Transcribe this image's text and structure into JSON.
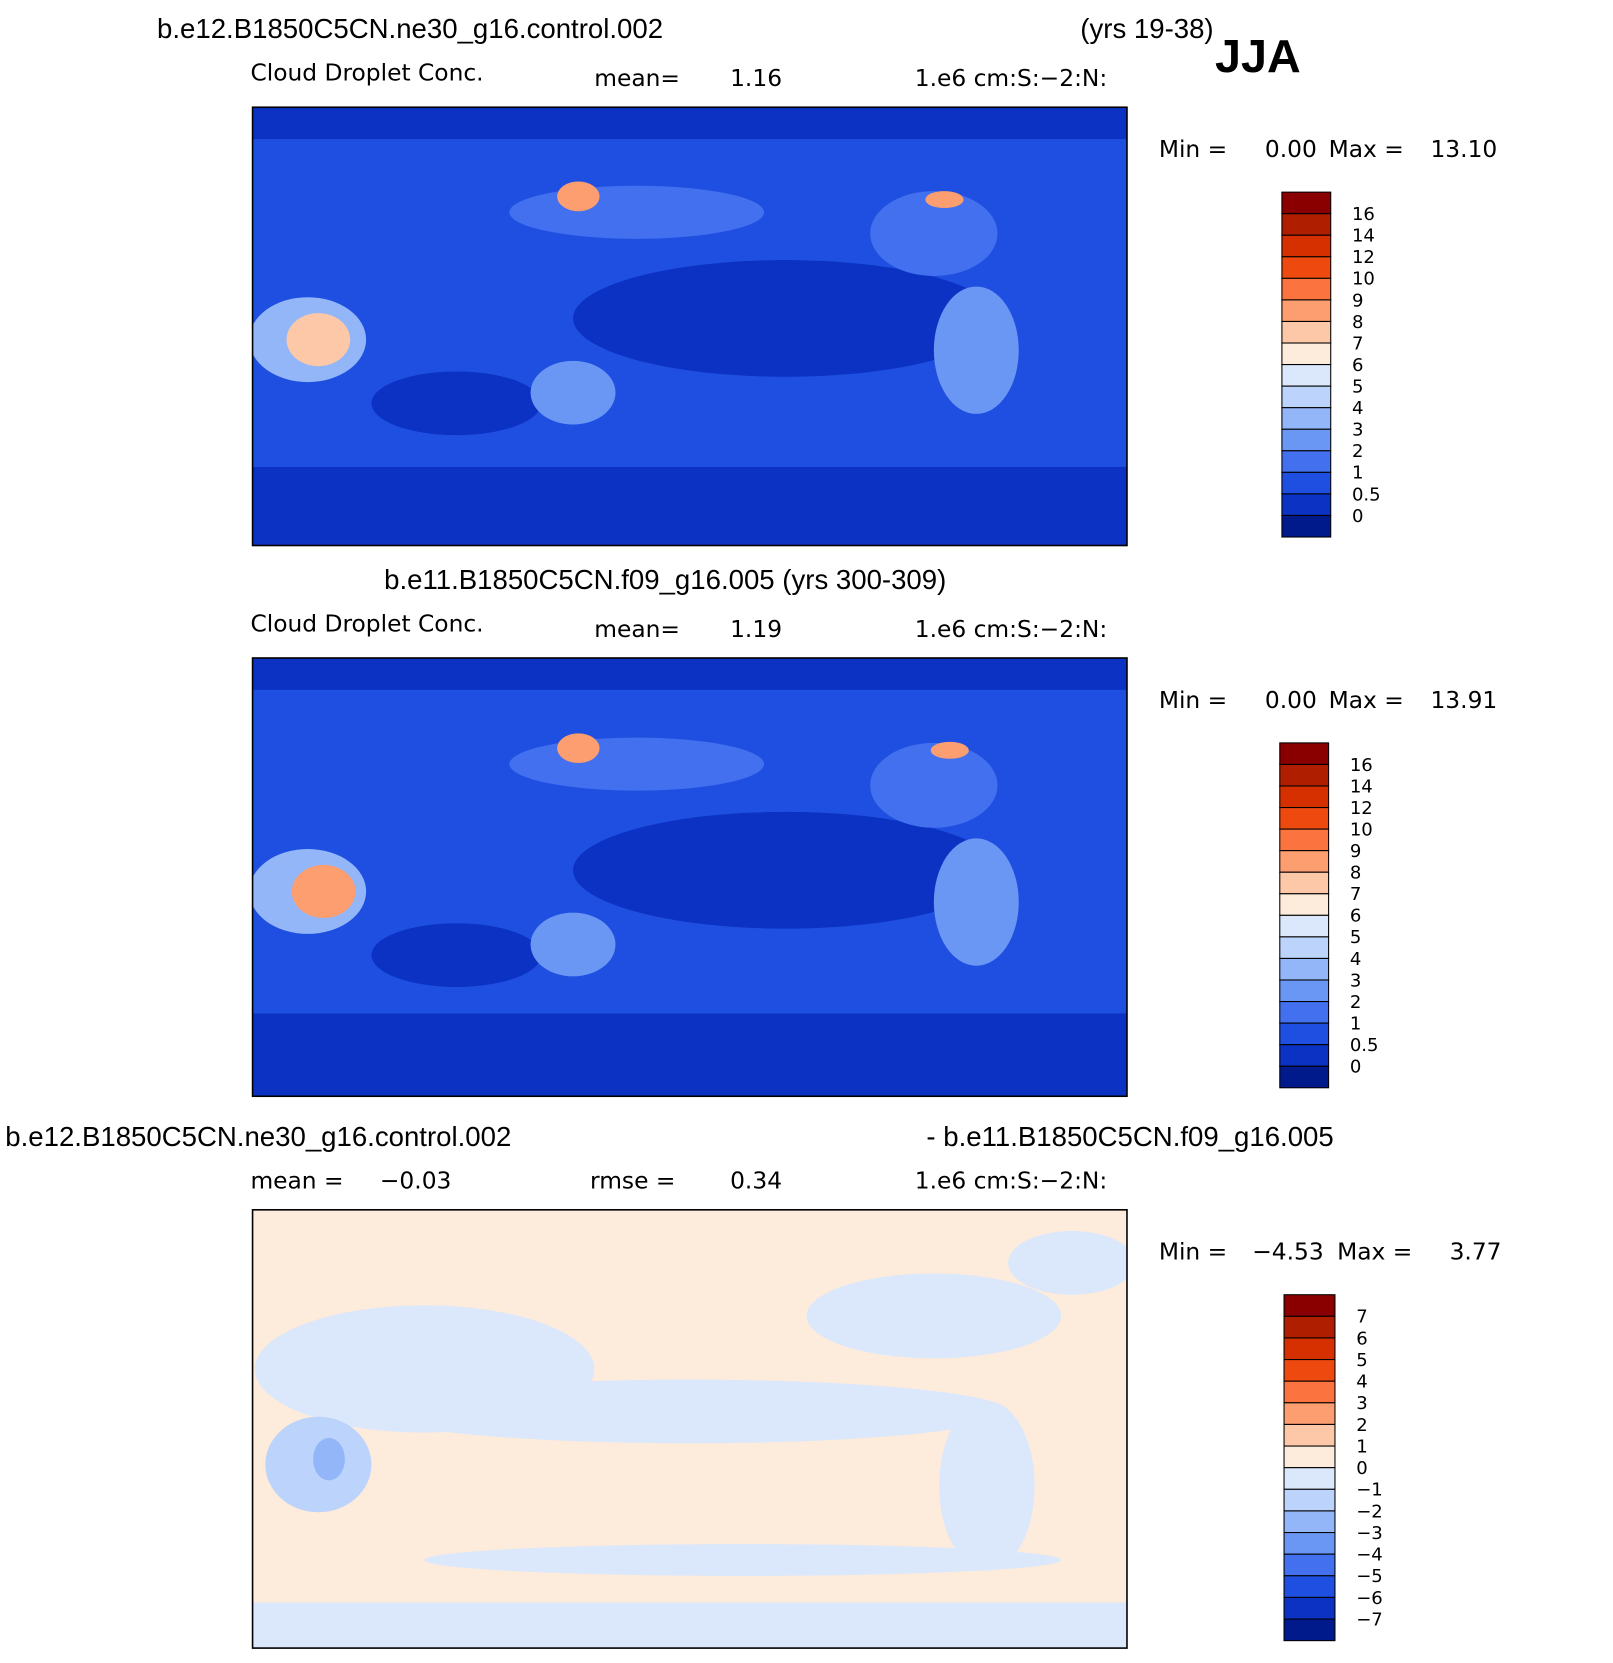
{
  "header": {
    "title": "b.e12.B1850C5CN.ne30_g16.control.002",
    "years": "(yrs 19-38)",
    "season": "JJA"
  },
  "panels": [
    {
      "variable": "Cloud Droplet Conc.",
      "mean_label": "mean=",
      "mean": "1.16",
      "units": "1.e6 cm:S:−2:N:",
      "min_label": "Min =",
      "min": "0.00",
      "max_label": "Max =",
      "max": "13.10",
      "colorbar": {
        "labels": [
          "16",
          "14",
          "12",
          "10",
          "9",
          "8",
          "7",
          "6",
          "5",
          "4",
          "3",
          "2",
          "1",
          "0.5",
          "0"
        ],
        "colors": [
          "#8a0000",
          "#b01e00",
          "#d63000",
          "#ee4a10",
          "#fb7440",
          "#fc9e70",
          "#fcc8a8",
          "#fdebdc",
          "#dbe8fb",
          "#bcd4fb",
          "#92b6f8",
          "#6b97f4",
          "#4370ee",
          "#1f4fe0",
          "#0b32c2",
          "#001a8c"
        ]
      }
    },
    {
      "title": "b.e11.B1850C5CN.f09_g16.005 (yrs 300-309)",
      "variable": "Cloud Droplet Conc.",
      "mean_label": "mean=",
      "mean": "1.19",
      "units": "1.e6 cm:S:−2:N:",
      "min_label": "Min =",
      "min": "0.00",
      "max_label": "Max =",
      "max": "13.91",
      "colorbar": {
        "labels": [
          "16",
          "14",
          "12",
          "10",
          "9",
          "8",
          "7",
          "6",
          "5",
          "4",
          "3",
          "2",
          "1",
          "0.5",
          "0"
        ],
        "colors": [
          "#8a0000",
          "#b01e00",
          "#d63000",
          "#ee4a10",
          "#fb7440",
          "#fc9e70",
          "#fcc8a8",
          "#fdebdc",
          "#dbe8fb",
          "#bcd4fb",
          "#92b6f8",
          "#6b97f4",
          "#4370ee",
          "#1f4fe0",
          "#0b32c2",
          "#001a8c"
        ]
      }
    },
    {
      "title_left": "b.e12.B1850C5CN.ne30_g16.control.002",
      "title_right": "- b.e11.B1850C5CN.f09_g16.005",
      "mean_label": "mean =",
      "mean": "−0.03",
      "rmse_label": "rmse =",
      "rmse": "0.34",
      "units": "1.e6 cm:S:−2:N:",
      "min_label": "Min =",
      "min": "−4.53",
      "max_label": "Max =",
      "max": "3.77",
      "colorbar": {
        "labels": [
          "7",
          "6",
          "5",
          "4",
          "3",
          "2",
          "1",
          "0",
          "−1",
          "−2",
          "−3",
          "−4",
          "−5",
          "−6",
          "−7"
        ],
        "colors": [
          "#8a0000",
          "#b01e00",
          "#d63000",
          "#ee4a10",
          "#fb7440",
          "#fc9e70",
          "#fcc8a8",
          "#fdebdc",
          "#dbe8fb",
          "#bcd4fb",
          "#92b6f8",
          "#6b97f4",
          "#4370ee",
          "#1f4fe0",
          "#0b32c2",
          "#001a8c"
        ]
      }
    }
  ]
}
